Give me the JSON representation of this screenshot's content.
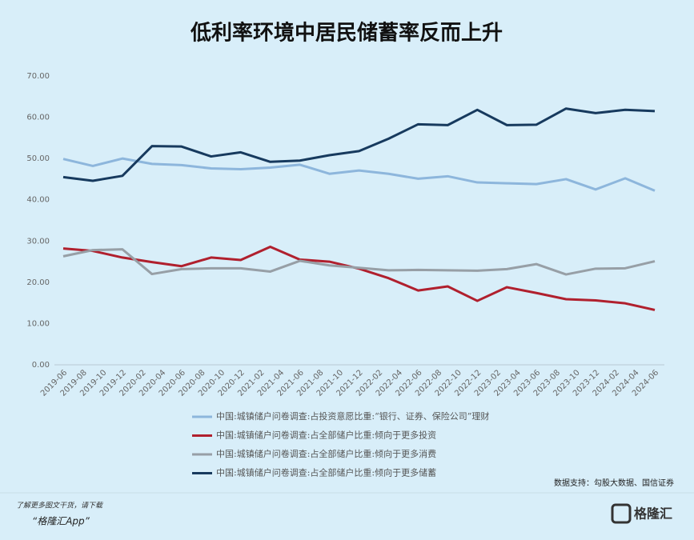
{
  "chart_data": {
    "type": "line",
    "title": "低利率环境中居民储蓄率反而上升",
    "x": [
      "2019-06",
      "2019-09",
      "2019-12",
      "2020-03",
      "2020-06",
      "2020-09",
      "2020-12",
      "2021-03",
      "2021-06",
      "2021-09",
      "2021-12",
      "2022-03",
      "2022-06",
      "2022-09",
      "2022-12",
      "2023-03",
      "2023-06",
      "2023-09",
      "2023-12",
      "2024-03",
      "2024-06"
    ],
    "xlim": [
      "2019-06",
      "2024-06"
    ],
    "xticks": [
      "2019-06",
      "2019-08",
      "2019-10",
      "2019-12",
      "2020-02",
      "2020-04",
      "2020-06",
      "2020-08",
      "2020-10",
      "2020-12",
      "2021-02",
      "2021-04",
      "2021-06",
      "2021-08",
      "2021-10",
      "2021-12",
      "2022-02",
      "2022-04",
      "2022-06",
      "2022-08",
      "2022-10",
      "2022-12",
      "2023-02",
      "2023-04",
      "2023-06",
      "2023-08",
      "2023-10",
      "2023-12",
      "2024-02",
      "2024-04",
      "2024-06"
    ],
    "ylim": [
      0,
      70
    ],
    "yticks": [
      {
        "value": 0,
        "label": "0.00"
      },
      {
        "value": 10,
        "label": "10.00"
      },
      {
        "value": 20,
        "label": "20.00"
      },
      {
        "value": 30,
        "label": "30.00"
      },
      {
        "value": 40,
        "label": "40.00"
      },
      {
        "value": 50,
        "label": "50.00"
      },
      {
        "value": 60,
        "label": "60.00"
      },
      {
        "value": 70,
        "label": "70.00"
      }
    ],
    "series": [
      {
        "name": "中国:城镇储户问卷调查:占投资意愿比重:“银行、证券、保险公司”理财",
        "color": "#8db6dc",
        "values": [
          49.9,
          48.2,
          50.0,
          48.7,
          48.4,
          47.6,
          47.4,
          47.8,
          48.5,
          46.3,
          47.1,
          46.3,
          45.1,
          45.7,
          44.2,
          44.0,
          43.8,
          45.0,
          42.5,
          45.2,
          42.2
        ]
      },
      {
        "name": "中国:城镇储户问卷调查:占全部储户比重:倾向于更多投资",
        "color": "#b0202e",
        "values": [
          28.2,
          27.6,
          26.0,
          24.9,
          23.9,
          26.0,
          25.4,
          28.6,
          25.5,
          25.0,
          23.3,
          21.0,
          18.0,
          19.0,
          15.5,
          18.8,
          17.4,
          15.9,
          15.6,
          14.9,
          13.3
        ]
      },
      {
        "name": "中国:城镇储户问卷调查:占全部储户比重:倾向于更多消费",
        "color": "#979fa6",
        "values": [
          26.3,
          27.8,
          28.0,
          22.0,
          23.2,
          23.4,
          23.4,
          22.6,
          25.2,
          24.1,
          23.5,
          22.9,
          23.0,
          22.9,
          22.8,
          23.2,
          24.4,
          21.9,
          23.3,
          23.4,
          25.1
        ]
      },
      {
        "name": "中国:城镇储户问卷调查:占全部储户比重:倾向于更多储蓄",
        "color": "#173a5e",
        "values": [
          45.5,
          44.6,
          45.8,
          53.0,
          52.9,
          50.5,
          51.5,
          49.2,
          49.5,
          50.8,
          51.8,
          54.8,
          58.3,
          58.1,
          61.8,
          58.1,
          58.2,
          62.1,
          61.0,
          61.8,
          61.5
        ]
      }
    ],
    "source": "数据支持：勾股大数据、国信证券",
    "footer_line1": "了解更多图文干货，请下载",
    "footer_line2": "“格隆汇App”",
    "logo": "格隆汇"
  }
}
